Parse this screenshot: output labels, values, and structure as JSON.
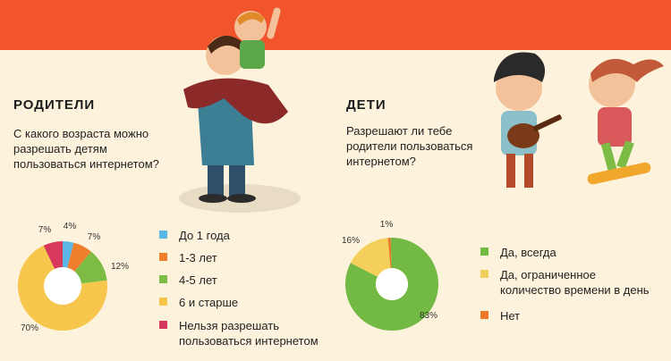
{
  "colors": {
    "band": "#f2552c",
    "background": "#fdf3dc"
  },
  "parents": {
    "heading": "РОДИТЕЛИ",
    "question_lines": [
      "С какого возраста можно",
      "разрешать детям",
      "пользоваться интернетом?"
    ]
  },
  "kids": {
    "heading": "ДЕТИ",
    "question_lines": [
      "Разрешают ли тебе",
      "родители пользоваться",
      "интернетом?"
    ]
  },
  "chart_data": [
    {
      "type": "pie",
      "donut": true,
      "categories": [
        "До 1 года",
        "1-3 лет",
        "4-5 лет",
        "6 и старше",
        "Нельзя разрешать пользоваться интернетом"
      ],
      "values": [
        4,
        7,
        12,
        70,
        7
      ],
      "value_labels": [
        "4%",
        "7%",
        "12%",
        "70%",
        "7%"
      ],
      "colors": [
        "#5bb8e6",
        "#ef7f2c",
        "#7cbc45",
        "#f7c64d",
        "#d9385d"
      ],
      "legend_lines": [
        [
          "До 1 года"
        ],
        [
          "1-3 лет"
        ],
        [
          "4-5 лет"
        ],
        [
          "6 и старше"
        ],
        [
          "Нельзя разрешать",
          "пользоваться интернетом"
        ]
      ],
      "legend": "right"
    },
    {
      "type": "pie",
      "donut": true,
      "categories": [
        "Да, всегда",
        "Да, ограниченное количество времени в день",
        "Нет"
      ],
      "values": [
        83,
        16,
        1
      ],
      "value_labels": [
        "83%",
        "16%",
        "1%"
      ],
      "colors": [
        "#72ba43",
        "#f5cf5b",
        "#ec7a26"
      ],
      "legend_lines": [
        [
          "Да, всегда"
        ],
        [
          "Да, ограниченное",
          "количество времени в день"
        ],
        [
          "Нет"
        ]
      ],
      "legend": "right"
    }
  ]
}
